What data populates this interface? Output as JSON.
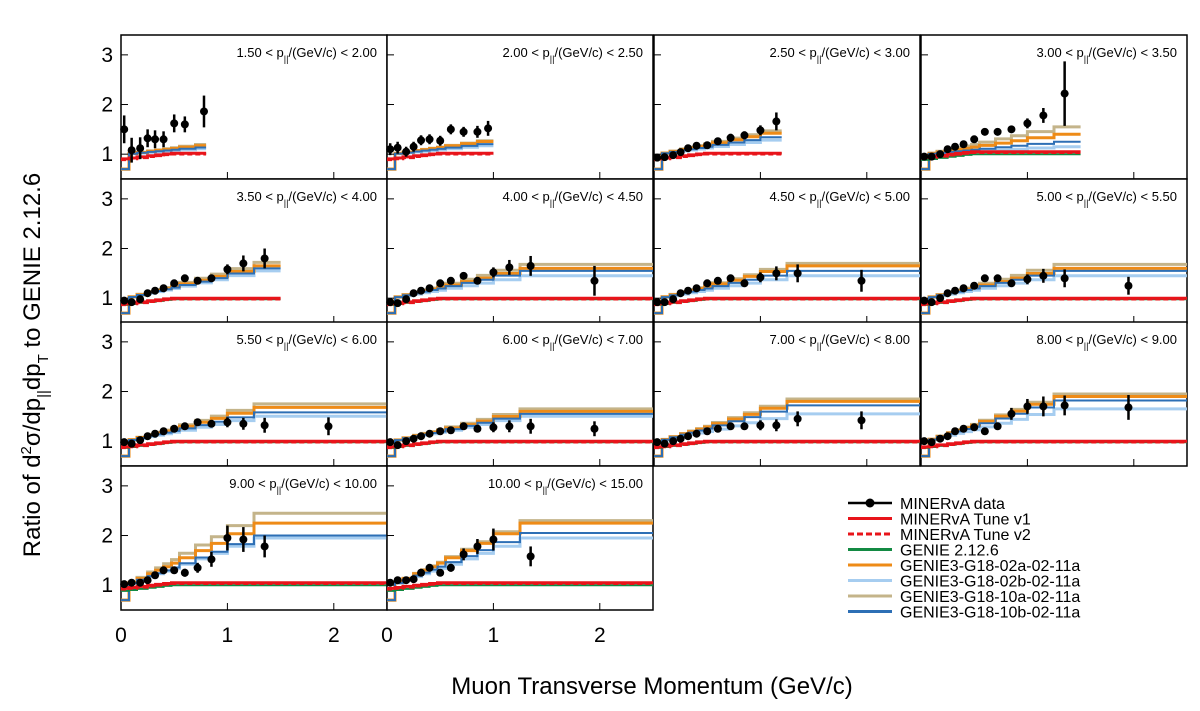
{
  "chart_data": {
    "type": "line",
    "xlabel": "Muon Transverse Momentum (GeV/c)",
    "ylabel": {
      "p1": "Ratio of d",
      "sup": "2",
      "p2": "σ/dp",
      "sub1": "||",
      "p3": "dp",
      "sub2": "T",
      "p4": " to GENIE 2.12.6"
    },
    "ylim": [
      0.5,
      3.4
    ],
    "yticks": [
      "1",
      "2",
      "3"
    ],
    "xticks": [
      "0",
      "1",
      "2"
    ],
    "xlim": [
      0,
      2.5
    ],
    "label_parts": {
      "p": "p",
      "sub": "||",
      "unit": "/(GeV/c) < "
    },
    "legend": [
      {
        "name": "MINERvA data",
        "color": "#000000",
        "style": "data"
      },
      {
        "name": "MINERvA Tune v1",
        "color": "#e8141a",
        "style": "solid"
      },
      {
        "name": "MINERvA Tune v2",
        "color": "#e8141a",
        "style": "dashed"
      },
      {
        "name": "GENIE 2.12.6",
        "color": "#138a43",
        "style": "solid"
      },
      {
        "name": "GENIE3-G18-02a-02-11a",
        "color": "#ee8b17",
        "style": "solid"
      },
      {
        "name": "GENIE3-G18-02b-02-11a",
        "color": "#a6cdf0",
        "style": "solid"
      },
      {
        "name": "GENIE3-G18-10a-02-11a",
        "color": "#c4b48a",
        "style": "solid"
      },
      {
        "name": "GENIE3-G18-10b-02-11a",
        "color": "#2d6fb5",
        "style": "solid"
      }
    ],
    "panels": [
      {
        "lo": "1.50",
        "hi": "2.00",
        "xmax": 0.8,
        "ratios": {
          "v1": 1.02,
          "g2": 1.02,
          "a02": 1.32,
          "b02": 1.2,
          "a10": 1.36,
          "b10": 1.25
        },
        "data": [
          [
            0.03,
            1.5,
            0.28
          ],
          [
            0.1,
            1.08,
            0.25
          ],
          [
            0.18,
            1.12,
            0.22
          ],
          [
            0.25,
            1.32,
            0.18
          ],
          [
            0.32,
            1.3,
            0.18
          ],
          [
            0.4,
            1.3,
            0.16
          ],
          [
            0.5,
            1.62,
            0.18
          ],
          [
            0.6,
            1.6,
            0.16
          ],
          [
            0.78,
            1.86,
            0.32
          ]
        ]
      },
      {
        "lo": "2.00",
        "hi": "2.50",
        "xmax": 1.0,
        "ratios": {
          "v1": 1.02,
          "g2": 1.02,
          "a02": 1.38,
          "b02": 1.25,
          "a10": 1.4,
          "b10": 1.3
        },
        "data": [
          [
            0.03,
            1.1,
            0.12
          ],
          [
            0.1,
            1.13,
            0.12
          ],
          [
            0.18,
            1.05,
            0.1
          ],
          [
            0.25,
            1.15,
            0.1
          ],
          [
            0.32,
            1.28,
            0.1
          ],
          [
            0.4,
            1.3,
            0.1
          ],
          [
            0.5,
            1.27,
            0.1
          ],
          [
            0.6,
            1.5,
            0.1
          ],
          [
            0.72,
            1.45,
            0.1
          ],
          [
            0.85,
            1.45,
            0.12
          ],
          [
            0.95,
            1.52,
            0.15
          ]
        ]
      },
      {
        "lo": "2.50",
        "hi": "3.00",
        "xmax": 1.2,
        "ratios": {
          "v1": 1.02,
          "g2": 1.02,
          "a02": 1.52,
          "b02": 1.35,
          "a10": 1.58,
          "b10": 1.42
        },
        "data": [
          [
            0.03,
            0.93,
            0.06
          ],
          [
            0.1,
            0.94,
            0.06
          ],
          [
            0.18,
            0.98,
            0.06
          ],
          [
            0.25,
            1.04,
            0.06
          ],
          [
            0.32,
            1.12,
            0.06
          ],
          [
            0.4,
            1.17,
            0.06
          ],
          [
            0.5,
            1.18,
            0.06
          ],
          [
            0.6,
            1.26,
            0.06
          ],
          [
            0.72,
            1.33,
            0.08
          ],
          [
            0.85,
            1.38,
            0.08
          ],
          [
            1.0,
            1.48,
            0.1
          ],
          [
            1.15,
            1.66,
            0.18
          ]
        ]
      },
      {
        "lo": "3.00",
        "hi": "3.50",
        "xmax": 1.5,
        "ratios": {
          "v1": 1.05,
          "g2": 1.0,
          "a02": 1.4,
          "b02": 1.15,
          "a10": 1.55,
          "b10": 1.25
        },
        "data": [
          [
            0.03,
            0.95,
            0.05
          ],
          [
            0.1,
            0.95,
            0.05
          ],
          [
            0.18,
            1.0,
            0.05
          ],
          [
            0.25,
            1.1,
            0.05
          ],
          [
            0.32,
            1.15,
            0.05
          ],
          [
            0.4,
            1.2,
            0.05
          ],
          [
            0.5,
            1.3,
            0.05
          ],
          [
            0.6,
            1.45,
            0.06
          ],
          [
            0.72,
            1.45,
            0.06
          ],
          [
            0.85,
            1.5,
            0.07
          ],
          [
            1.0,
            1.62,
            0.1
          ],
          [
            1.15,
            1.78,
            0.15
          ],
          [
            1.35,
            2.22,
            0.65
          ]
        ]
      },
      {
        "lo": "3.50",
        "hi": "4.00",
        "xmax": 1.5,
        "ratios": {
          "v1": 1.0,
          "g2": 0.98,
          "a02": 1.65,
          "b02": 1.55,
          "a10": 1.72,
          "b10": 1.6
        },
        "data": [
          [
            0.03,
            0.95,
            0.05
          ],
          [
            0.1,
            0.92,
            0.05
          ],
          [
            0.18,
            0.98,
            0.05
          ],
          [
            0.25,
            1.1,
            0.05
          ],
          [
            0.32,
            1.15,
            0.05
          ],
          [
            0.4,
            1.2,
            0.05
          ],
          [
            0.5,
            1.3,
            0.05
          ],
          [
            0.6,
            1.4,
            0.06
          ],
          [
            0.72,
            1.35,
            0.06
          ],
          [
            0.85,
            1.4,
            0.07
          ],
          [
            1.0,
            1.58,
            0.1
          ],
          [
            1.15,
            1.7,
            0.16
          ],
          [
            1.35,
            1.8,
            0.2
          ]
        ]
      },
      {
        "lo": "4.00",
        "hi": "4.50",
        "xmax": 2.5,
        "ratios": {
          "v1": 1.0,
          "g2": 0.98,
          "a02": 1.6,
          "b02": 1.45,
          "a10": 1.68,
          "b10": 1.55
        },
        "data": [
          [
            0.03,
            0.92,
            0.05
          ],
          [
            0.1,
            0.9,
            0.05
          ],
          [
            0.18,
            0.98,
            0.05
          ],
          [
            0.25,
            1.1,
            0.05
          ],
          [
            0.32,
            1.15,
            0.05
          ],
          [
            0.4,
            1.2,
            0.05
          ],
          [
            0.5,
            1.3,
            0.05
          ],
          [
            0.6,
            1.35,
            0.05
          ],
          [
            0.72,
            1.45,
            0.06
          ],
          [
            0.85,
            1.35,
            0.07
          ],
          [
            1.0,
            1.52,
            0.1
          ],
          [
            1.15,
            1.62,
            0.15
          ],
          [
            1.35,
            1.65,
            0.2
          ],
          [
            1.95,
            1.35,
            0.3
          ]
        ]
      },
      {
        "lo": "4.50",
        "hi": "5.00",
        "xmax": 2.5,
        "ratios": {
          "v1": 1.0,
          "g2": 0.98,
          "a02": 1.65,
          "b02": 1.45,
          "a10": 1.7,
          "b10": 1.55
        },
        "data": [
          [
            0.03,
            0.92,
            0.05
          ],
          [
            0.1,
            0.92,
            0.05
          ],
          [
            0.18,
            0.98,
            0.05
          ],
          [
            0.25,
            1.1,
            0.05
          ],
          [
            0.32,
            1.15,
            0.05
          ],
          [
            0.4,
            1.2,
            0.05
          ],
          [
            0.5,
            1.3,
            0.05
          ],
          [
            0.6,
            1.35,
            0.05
          ],
          [
            0.72,
            1.4,
            0.06
          ],
          [
            0.85,
            1.3,
            0.07
          ],
          [
            1.0,
            1.42,
            0.1
          ],
          [
            1.15,
            1.5,
            0.14
          ],
          [
            1.35,
            1.5,
            0.18
          ],
          [
            1.95,
            1.35,
            0.22
          ]
        ]
      },
      {
        "lo": "5.00",
        "hi": "5.50",
        "xmax": 2.5,
        "ratios": {
          "v1": 1.0,
          "g2": 0.98,
          "a02": 1.6,
          "b02": 1.45,
          "a10": 1.68,
          "b10": 1.55
        },
        "data": [
          [
            0.03,
            0.95,
            0.05
          ],
          [
            0.1,
            0.92,
            0.05
          ],
          [
            0.18,
            1.0,
            0.05
          ],
          [
            0.25,
            1.1,
            0.05
          ],
          [
            0.32,
            1.15,
            0.05
          ],
          [
            0.4,
            1.2,
            0.05
          ],
          [
            0.5,
            1.25,
            0.05
          ],
          [
            0.6,
            1.4,
            0.05
          ],
          [
            0.72,
            1.4,
            0.06
          ],
          [
            0.85,
            1.3,
            0.07
          ],
          [
            1.0,
            1.38,
            0.1
          ],
          [
            1.15,
            1.45,
            0.14
          ],
          [
            1.35,
            1.4,
            0.18
          ],
          [
            1.95,
            1.25,
            0.18
          ]
        ]
      },
      {
        "lo": "5.50",
        "hi": "6.00",
        "xmax": 2.5,
        "ratios": {
          "v1": 1.0,
          "g2": 0.98,
          "a02": 1.68,
          "b02": 1.5,
          "a10": 1.75,
          "b10": 1.58
        },
        "data": [
          [
            0.03,
            0.98,
            0.05
          ],
          [
            0.1,
            0.95,
            0.05
          ],
          [
            0.18,
            1.02,
            0.05
          ],
          [
            0.25,
            1.1,
            0.05
          ],
          [
            0.32,
            1.15,
            0.05
          ],
          [
            0.4,
            1.2,
            0.05
          ],
          [
            0.5,
            1.25,
            0.05
          ],
          [
            0.6,
            1.3,
            0.05
          ],
          [
            0.72,
            1.38,
            0.06
          ],
          [
            0.85,
            1.35,
            0.07
          ],
          [
            1.0,
            1.38,
            0.1
          ],
          [
            1.15,
            1.35,
            0.12
          ],
          [
            1.35,
            1.32,
            0.15
          ],
          [
            1.95,
            1.3,
            0.18
          ]
        ]
      },
      {
        "lo": "6.00",
        "hi": "7.00",
        "xmax": 2.5,
        "ratios": {
          "v1": 1.0,
          "g2": 0.98,
          "a02": 1.6,
          "b02": 1.5,
          "a10": 1.65,
          "b10": 1.55
        },
        "data": [
          [
            0.03,
            0.98,
            0.04
          ],
          [
            0.1,
            0.92,
            0.04
          ],
          [
            0.18,
            1.0,
            0.04
          ],
          [
            0.25,
            1.05,
            0.04
          ],
          [
            0.32,
            1.1,
            0.04
          ],
          [
            0.4,
            1.15,
            0.04
          ],
          [
            0.5,
            1.2,
            0.05
          ],
          [
            0.6,
            1.22,
            0.05
          ],
          [
            0.72,
            1.3,
            0.06
          ],
          [
            0.85,
            1.25,
            0.07
          ],
          [
            1.0,
            1.28,
            0.1
          ],
          [
            1.15,
            1.3,
            0.12
          ],
          [
            1.35,
            1.3,
            0.15
          ],
          [
            1.95,
            1.25,
            0.15
          ]
        ]
      },
      {
        "lo": "7.00",
        "hi": "8.00",
        "xmax": 2.5,
        "ratios": {
          "v1": 1.0,
          "g2": 0.98,
          "a02": 1.8,
          "b02": 1.55,
          "a10": 1.85,
          "b10": 1.72
        },
        "data": [
          [
            0.03,
            0.98,
            0.04
          ],
          [
            0.1,
            0.95,
            0.04
          ],
          [
            0.18,
            1.0,
            0.04
          ],
          [
            0.25,
            1.05,
            0.04
          ],
          [
            0.32,
            1.1,
            0.04
          ],
          [
            0.4,
            1.15,
            0.04
          ],
          [
            0.5,
            1.2,
            0.05
          ],
          [
            0.6,
            1.25,
            0.05
          ],
          [
            0.72,
            1.3,
            0.06
          ],
          [
            0.85,
            1.3,
            0.07
          ],
          [
            1.0,
            1.32,
            0.1
          ],
          [
            1.15,
            1.32,
            0.12
          ],
          [
            1.35,
            1.45,
            0.15
          ],
          [
            1.95,
            1.42,
            0.18
          ]
        ]
      },
      {
        "lo": "8.00",
        "hi": "9.00",
        "xmax": 2.5,
        "ratios": {
          "v1": 1.0,
          "g2": 0.98,
          "a02": 1.9,
          "b02": 1.65,
          "a10": 1.95,
          "b10": 1.82
        },
        "data": [
          [
            0.03,
            1.0,
            0.05
          ],
          [
            0.1,
            0.98,
            0.05
          ],
          [
            0.18,
            1.05,
            0.05
          ],
          [
            0.25,
            1.1,
            0.05
          ],
          [
            0.32,
            1.2,
            0.05
          ],
          [
            0.4,
            1.25,
            0.05
          ],
          [
            0.5,
            1.28,
            0.05
          ],
          [
            0.6,
            1.2,
            0.06
          ],
          [
            0.72,
            1.3,
            0.07
          ],
          [
            0.85,
            1.55,
            0.12
          ],
          [
            1.0,
            1.7,
            0.15
          ],
          [
            1.15,
            1.7,
            0.2
          ],
          [
            1.35,
            1.72,
            0.2
          ],
          [
            1.95,
            1.68,
            0.25
          ]
        ]
      },
      {
        "lo": "9.00",
        "hi": "10.00",
        "xmax": 2.5,
        "ratios": {
          "v1": 1.05,
          "g2": 1.0,
          "a02": 2.25,
          "b02": 1.95,
          "a10": 2.45,
          "b10": 2.0
        },
        "data": [
          [
            0.03,
            1.02,
            0.05
          ],
          [
            0.1,
            1.05,
            0.05
          ],
          [
            0.18,
            1.05,
            0.05
          ],
          [
            0.25,
            1.1,
            0.05
          ],
          [
            0.32,
            1.2,
            0.05
          ],
          [
            0.4,
            1.3,
            0.06
          ],
          [
            0.5,
            1.3,
            0.07
          ],
          [
            0.6,
            1.25,
            0.08
          ],
          [
            0.72,
            1.35,
            0.1
          ],
          [
            0.85,
            1.52,
            0.15
          ],
          [
            1.0,
            1.95,
            0.25
          ],
          [
            1.15,
            1.92,
            0.25
          ],
          [
            1.35,
            1.78,
            0.22
          ]
        ]
      },
      {
        "lo": "10.00",
        "hi": "15.00",
        "xmax": 2.5,
        "ratios": {
          "v1": 1.05,
          "g2": 1.0,
          "a02": 2.25,
          "b02": 1.95,
          "a10": 2.3,
          "b10": 2.05
        },
        "data": [
          [
            0.03,
            1.05,
            0.05
          ],
          [
            0.1,
            1.1,
            0.05
          ],
          [
            0.18,
            1.1,
            0.05
          ],
          [
            0.25,
            1.12,
            0.05
          ],
          [
            0.32,
            1.25,
            0.05
          ],
          [
            0.4,
            1.35,
            0.06
          ],
          [
            0.5,
            1.25,
            0.07
          ],
          [
            0.6,
            1.35,
            0.08
          ],
          [
            0.72,
            1.62,
            0.12
          ],
          [
            0.85,
            1.78,
            0.15
          ],
          [
            1.0,
            1.92,
            0.22
          ],
          [
            1.35,
            1.58,
            0.2
          ]
        ]
      }
    ]
  }
}
